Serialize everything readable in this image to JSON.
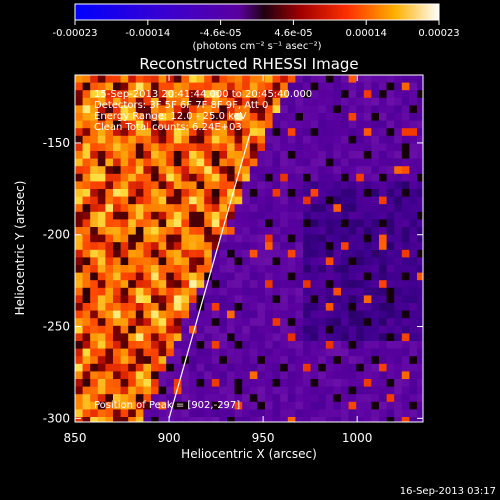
{
  "chart_data": {
    "type": "heatmap",
    "title": "Reconstructed RHESSI Image",
    "xlabel": "Heliocentric X (arcsec)",
    "ylabel": "Heliocentric Y (arcsec)",
    "xlim": [
      850,
      1035
    ],
    "ylim": [
      -302,
      -113
    ],
    "x_ticks": [
      850,
      900,
      950,
      1000
    ],
    "y_ticks": [
      -150,
      -200,
      -250,
      -300
    ],
    "colorbar": {
      "ticks": [
        "-0.00023",
        "-0.00014",
        "-4.6e-05",
        "4.6e-05",
        "0.00014",
        "0.00023"
      ],
      "unit_label": "(photons cm⁻² s⁻¹ asec⁻²)",
      "range": [
        -0.00023,
        0.00023
      ]
    },
    "annotations": [
      "15-Sep-2013 20:41:44.000 to 20:45:40.000",
      "Detectors: 3F 5F 6F 7F 8F 9F, Att 0",
      "Energy Range: 12.0 - 25.0 keV",
      "Clean    Total counts: 6.24E+03"
    ],
    "peak_label": "Position of Peak = [902,-297]",
    "limb_line": [
      [
        900,
        -300
      ],
      [
        943,
        -145
      ]
    ]
  },
  "footer": {
    "timestamp": "16-Sep-2013 03:17"
  }
}
